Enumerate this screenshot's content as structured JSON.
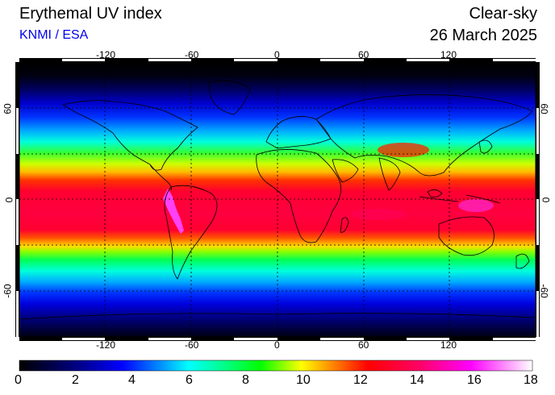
{
  "header": {
    "title": "Erythemal UV index",
    "organization": "KNMI / ESA",
    "condition": "Clear-sky",
    "date": "26 March 2025"
  },
  "map": {
    "lon_ticks": [
      "-120",
      "-60",
      "0",
      "60",
      "120"
    ],
    "lat_ticks": [
      "60",
      "0",
      "-60"
    ],
    "grid": true,
    "colors": {
      "polar": "#000000",
      "high_lat": "#0000ff",
      "mid_lat": "#00ffff",
      "subtropic": "#00ff00",
      "tropic": "#ff0033",
      "andes": "#ff33ff"
    }
  },
  "colorbar": {
    "labels": [
      "0",
      "2",
      "4",
      "6",
      "8",
      "10",
      "12",
      "14",
      "16",
      "18"
    ],
    "min": 0,
    "max": 18
  }
}
